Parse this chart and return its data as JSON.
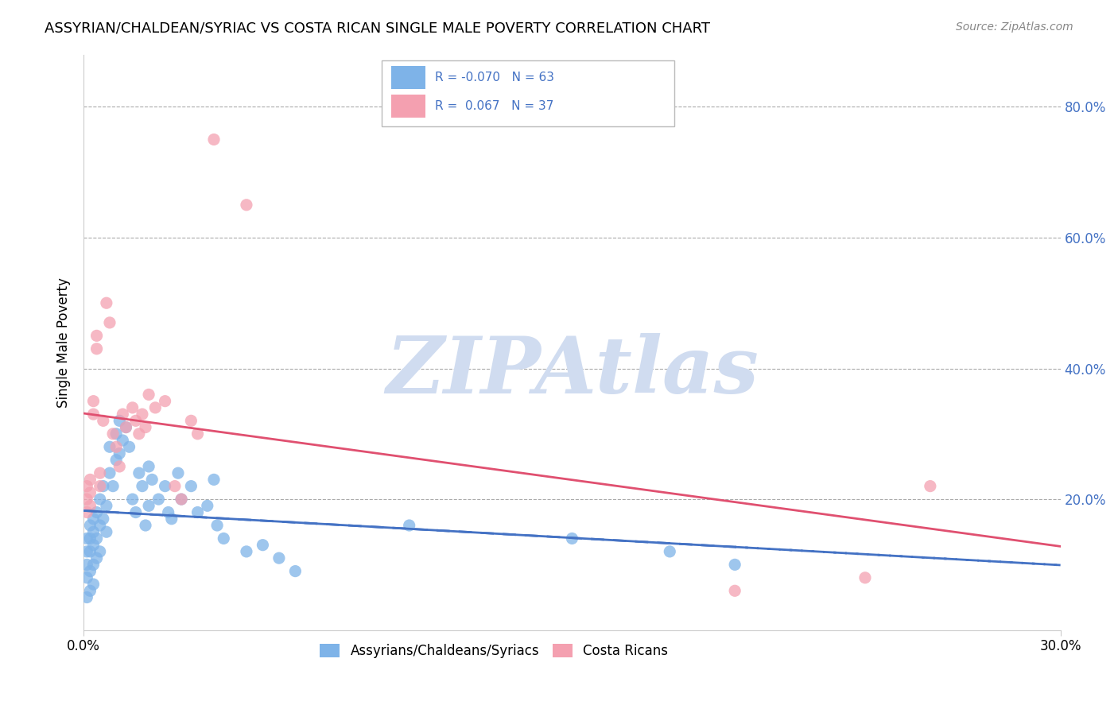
{
  "title": "ASSYRIAN/CHALDEAN/SYRIAC VS COSTA RICAN SINGLE MALE POVERTY CORRELATION CHART",
  "source": "Source: ZipAtlas.com",
  "xlabel": "",
  "ylabel": "Single Male Poverty",
  "xlim": [
    0.0,
    0.3
  ],
  "ylim": [
    0.0,
    0.88
  ],
  "xtick_labels": [
    "0.0%",
    "30.0%"
  ],
  "ytick_positions": [
    0.2,
    0.4,
    0.6,
    0.8
  ],
  "ytick_labels": [
    "20.0%",
    "40.0%",
    "60.0%",
    "80.0%"
  ],
  "blue_color": "#7EB3E8",
  "pink_color": "#F4A0B0",
  "blue_line_color": "#4472C4",
  "pink_line_color": "#E05070",
  "R_blue": -0.07,
  "N_blue": 63,
  "R_pink": 0.067,
  "N_pink": 37,
  "watermark": "ZIPAtlas",
  "watermark_color": "#D0DCF0",
  "legend_label_blue": "Assyrians/Chaldeans/Syriacs",
  "legend_label_pink": "Costa Ricans",
  "blue_x": [
    0.001,
    0.001,
    0.001,
    0.001,
    0.001,
    0.002,
    0.002,
    0.002,
    0.002,
    0.002,
    0.003,
    0.003,
    0.003,
    0.003,
    0.003,
    0.004,
    0.004,
    0.004,
    0.005,
    0.005,
    0.005,
    0.006,
    0.006,
    0.007,
    0.007,
    0.008,
    0.008,
    0.009,
    0.01,
    0.01,
    0.011,
    0.011,
    0.012,
    0.013,
    0.014,
    0.015,
    0.016,
    0.017,
    0.018,
    0.019,
    0.02,
    0.02,
    0.021,
    0.023,
    0.025,
    0.026,
    0.027,
    0.029,
    0.03,
    0.033,
    0.035,
    0.038,
    0.04,
    0.041,
    0.043,
    0.05,
    0.055,
    0.06,
    0.065,
    0.1,
    0.15,
    0.18,
    0.2
  ],
  "blue_y": [
    0.14,
    0.12,
    0.1,
    0.08,
    0.05,
    0.16,
    0.14,
    0.12,
    0.09,
    0.06,
    0.17,
    0.15,
    0.13,
    0.1,
    0.07,
    0.18,
    0.14,
    0.11,
    0.2,
    0.16,
    0.12,
    0.22,
    0.17,
    0.19,
    0.15,
    0.28,
    0.24,
    0.22,
    0.3,
    0.26,
    0.32,
    0.27,
    0.29,
    0.31,
    0.28,
    0.2,
    0.18,
    0.24,
    0.22,
    0.16,
    0.25,
    0.19,
    0.23,
    0.2,
    0.22,
    0.18,
    0.17,
    0.24,
    0.2,
    0.22,
    0.18,
    0.19,
    0.23,
    0.16,
    0.14,
    0.12,
    0.13,
    0.11,
    0.09,
    0.16,
    0.14,
    0.12,
    0.1
  ],
  "pink_x": [
    0.001,
    0.001,
    0.001,
    0.002,
    0.002,
    0.002,
    0.003,
    0.003,
    0.004,
    0.004,
    0.005,
    0.005,
    0.006,
    0.007,
    0.008,
    0.009,
    0.01,
    0.011,
    0.012,
    0.013,
    0.015,
    0.016,
    0.017,
    0.018,
    0.019,
    0.02,
    0.022,
    0.025,
    0.028,
    0.03,
    0.033,
    0.035,
    0.04,
    0.05,
    0.2,
    0.24,
    0.26
  ],
  "pink_y": [
    0.22,
    0.2,
    0.18,
    0.23,
    0.21,
    0.19,
    0.35,
    0.33,
    0.45,
    0.43,
    0.24,
    0.22,
    0.32,
    0.5,
    0.47,
    0.3,
    0.28,
    0.25,
    0.33,
    0.31,
    0.34,
    0.32,
    0.3,
    0.33,
    0.31,
    0.36,
    0.34,
    0.35,
    0.22,
    0.2,
    0.32,
    0.3,
    0.75,
    0.65,
    0.06,
    0.08,
    0.22
  ]
}
